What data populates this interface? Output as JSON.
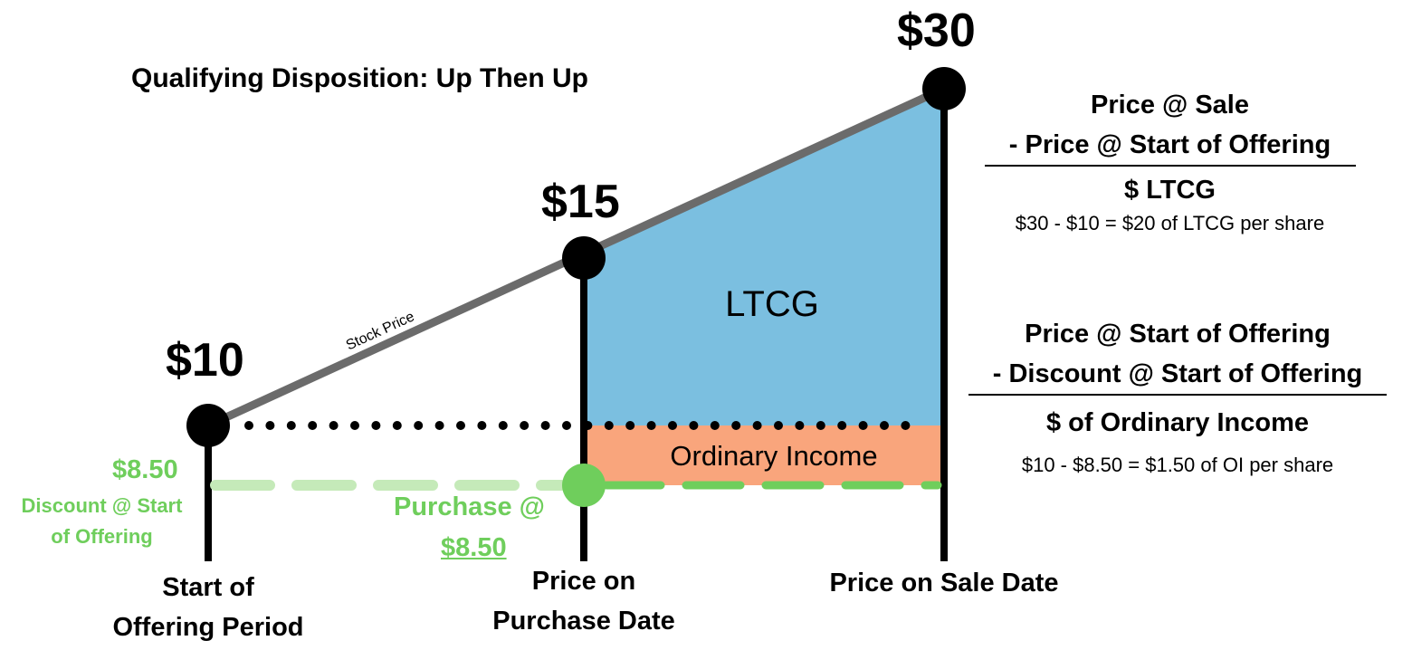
{
  "title": "Qualifying Disposition: Up Then Up",
  "points": {
    "start_price": "$10",
    "purchase_price": "$15",
    "sale_price": "$30"
  },
  "line_label": "Stock Price",
  "regions": {
    "ltcg": "LTCG",
    "ordinary_income": "Ordinary Income"
  },
  "discount": {
    "value": "$8.50",
    "label_line1": "Discount @ Start",
    "label_line2": "of Offering"
  },
  "purchase": {
    "label": "Purchase @",
    "value": "$8.50"
  },
  "axis_labels": {
    "start_line1": "Start of",
    "start_line2": "Offering Period",
    "purchase_line1": "Price on",
    "purchase_line2": "Purchase Date",
    "sale": "Price on Sale Date"
  },
  "formula_ltcg": {
    "line1": "Price @ Sale",
    "line2": "- Price @ Start of Offering",
    "result": "$ LTCG",
    "calc": "$30 - $10  = $20 of LTCG per share"
  },
  "formula_oi": {
    "line1": "Price @ Start of Offering",
    "line2": "- Discount @ Start of Offering",
    "result": "$ of Ordinary Income",
    "calc": "$10 - $8.50 = $1.50 of OI per share"
  },
  "colors": {
    "ltcg_fill": "#7bbfe0",
    "ordinary_income_fill": "#f9a57c",
    "discount_green": "#6fce5c",
    "discount_green_light": "#c5eab9",
    "stock_line": "#6b6b6b"
  }
}
